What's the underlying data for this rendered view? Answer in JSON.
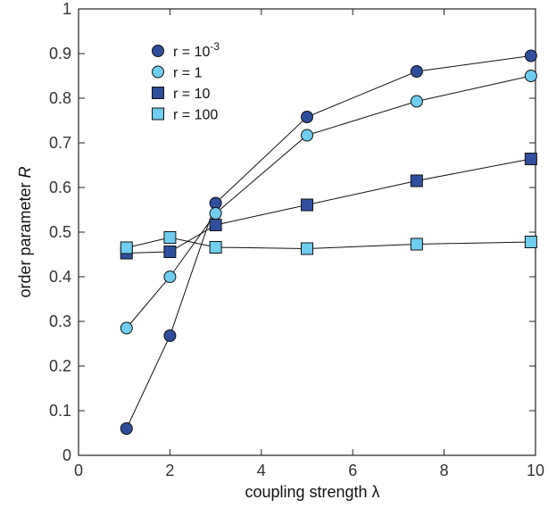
{
  "chart_data": {
    "type": "line",
    "xlabel": "coupling strength λ",
    "ylabel_main": "order parameter ",
    "ylabel_var": "R",
    "xlim": [
      0,
      10
    ],
    "ylim": [
      0,
      1
    ],
    "xticks": [
      0,
      2,
      4,
      6,
      8,
      10
    ],
    "yticks": [
      0,
      0.1,
      0.2,
      0.3,
      0.4,
      0.5,
      0.6,
      0.7,
      0.8,
      0.9,
      1
    ],
    "xtick_labels": [
      "0",
      "2",
      "4",
      "6",
      "8",
      "10"
    ],
    "ytick_labels": [
      "0",
      "0.1",
      "0.2",
      "0.3",
      "0.4",
      "0.5",
      "0.6",
      "0.7",
      "0.8",
      "0.9",
      "1"
    ],
    "grid": false,
    "legend_position": "top-left",
    "series": [
      {
        "name": "r = 10-3",
        "name_base": "r = 10",
        "name_sup": "-3",
        "marker": "circle",
        "color": "#2f4f9e",
        "x": [
          1.05,
          2.0,
          3.0,
          5.0,
          7.4,
          9.9
        ],
        "y": [
          0.06,
          0.268,
          0.565,
          0.758,
          0.86,
          0.895
        ]
      },
      {
        "name": "r = 1",
        "marker": "circle",
        "color": "#6fcdef",
        "x": [
          1.05,
          2.0,
          3.0,
          5.0,
          7.4,
          9.9
        ],
        "y": [
          0.285,
          0.4,
          0.542,
          0.717,
          0.793,
          0.85
        ]
      },
      {
        "name": "r = 10",
        "marker": "square",
        "color": "#2f4f9e",
        "x": [
          1.05,
          2.0,
          3.0,
          5.0,
          7.4,
          9.9
        ],
        "y": [
          0.453,
          0.456,
          0.516,
          0.561,
          0.615,
          0.664
        ]
      },
      {
        "name": "r = 100",
        "marker": "square",
        "color": "#6fcdef",
        "x": [
          1.05,
          2.0,
          3.0,
          5.0,
          7.4,
          9.9
        ],
        "y": [
          0.465,
          0.488,
          0.466,
          0.463,
          0.473,
          0.478
        ]
      }
    ]
  }
}
